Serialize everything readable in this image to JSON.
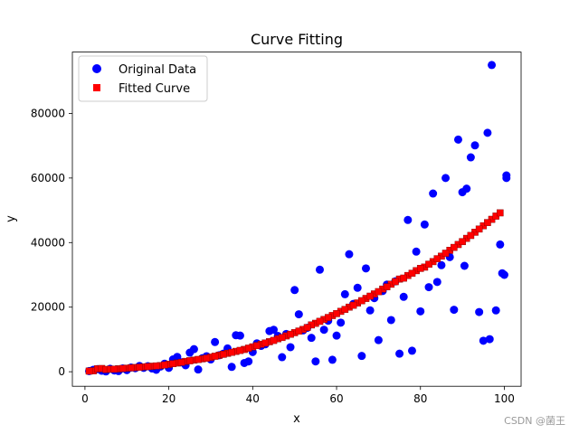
{
  "chart_data": {
    "type": "scatter",
    "title": "Curve Fitting",
    "xlabel": "x",
    "ylabel": "y",
    "xlim": [
      -3,
      104
    ],
    "ylim": [
      -4500,
      99000
    ],
    "x_ticks": [
      0,
      20,
      40,
      60,
      80,
      100
    ],
    "y_ticks": [
      0,
      20000,
      40000,
      60000,
      80000
    ],
    "x_tick_labels": [
      "0",
      "20",
      "40",
      "60",
      "80",
      "100"
    ],
    "y_tick_labels": [
      "0",
      "20000",
      "40000",
      "60000",
      "80000"
    ],
    "legend_position": "upper-left",
    "series": [
      {
        "name": "Original Data",
        "color": "#0000ff",
        "marker": "circle",
        "points": [
          [
            1,
            200
          ],
          [
            2,
            600
          ],
          [
            3,
            800
          ],
          [
            4,
            300
          ],
          [
            5,
            100
          ],
          [
            6,
            900
          ],
          [
            7,
            400
          ],
          [
            8,
            200
          ],
          [
            9,
            1000
          ],
          [
            10,
            500
          ],
          [
            11,
            1300
          ],
          [
            12,
            1100
          ],
          [
            13,
            1800
          ],
          [
            14,
            1200
          ],
          [
            15,
            1700
          ],
          [
            16,
            1000
          ],
          [
            17,
            600
          ],
          [
            18,
            1600
          ],
          [
            19,
            2500
          ],
          [
            20,
            1200
          ],
          [
            21,
            3800
          ],
          [
            22,
            4600
          ],
          [
            23,
            2900
          ],
          [
            24,
            2000
          ],
          [
            25,
            5900
          ],
          [
            26,
            7000
          ],
          [
            27,
            700
          ],
          [
            28,
            4200
          ],
          [
            29,
            4800
          ],
          [
            30,
            3800
          ],
          [
            31,
            9200
          ],
          [
            32,
            5100
          ],
          [
            33,
            5600
          ],
          [
            34,
            7200
          ],
          [
            35,
            1500
          ],
          [
            36,
            11300
          ],
          [
            37,
            11200
          ],
          [
            38,
            2700
          ],
          [
            39,
            3200
          ],
          [
            40,
            6100
          ],
          [
            41,
            8800
          ],
          [
            42,
            8000
          ],
          [
            43,
            8500
          ],
          [
            44,
            12600
          ],
          [
            45,
            13000
          ],
          [
            46,
            11100
          ],
          [
            47,
            4500
          ],
          [
            48,
            11700
          ],
          [
            49,
            7600
          ],
          [
            50,
            25300
          ],
          [
            51,
            17800
          ],
          [
            52,
            12800
          ],
          [
            53,
            13600
          ],
          [
            54,
            10500
          ],
          [
            55,
            3200
          ],
          [
            56,
            31600
          ],
          [
            57,
            13000
          ],
          [
            58,
            15800
          ],
          [
            59,
            3700
          ],
          [
            60,
            11200
          ],
          [
            61,
            15200
          ],
          [
            62,
            24000
          ],
          [
            63,
            36400
          ],
          [
            64,
            21000
          ],
          [
            65,
            26000
          ],
          [
            66,
            4900
          ],
          [
            67,
            32000
          ],
          [
            68,
            19000
          ],
          [
            69,
            22800
          ],
          [
            70,
            9800
          ],
          [
            71,
            25000
          ],
          [
            72,
            27000
          ],
          [
            73,
            16000
          ],
          [
            74,
            28000
          ],
          [
            75,
            5600
          ],
          [
            76,
            23200
          ],
          [
            77,
            47000
          ],
          [
            78,
            6500
          ],
          [
            79,
            37200
          ],
          [
            80,
            18700
          ],
          [
            81,
            45600
          ],
          [
            82,
            26200
          ],
          [
            83,
            55200
          ],
          [
            84,
            27800
          ],
          [
            85,
            33000
          ],
          [
            86,
            60000
          ],
          [
            87,
            35500
          ],
          [
            88,
            19200
          ],
          [
            89,
            71900
          ],
          [
            90,
            55600
          ],
          [
            91,
            56700
          ],
          [
            92,
            66400
          ],
          [
            93,
            70100
          ],
          [
            94,
            18500
          ],
          [
            95,
            9600
          ],
          [
            96,
            74000
          ],
          [
            97,
            95000
          ],
          [
            98,
            19000
          ],
          [
            99,
            39400
          ],
          [
            100,
            30000
          ],
          [
            96.5,
            10100
          ],
          [
            99.5,
            30500
          ],
          [
            100.5,
            60000
          ],
          [
            100.5,
            60800
          ],
          [
            90.5,
            32800
          ]
        ]
      },
      {
        "name": "Fitted Curve",
        "color": "#ff0000",
        "marker": "square",
        "points": [
          [
            2,
            300
          ],
          [
            3,
            900
          ],
          [
            4,
            1000
          ],
          [
            5,
            700
          ],
          [
            6,
            800
          ],
          [
            8,
            900
          ],
          [
            10,
            1100
          ],
          [
            12,
            1300
          ],
          [
            14,
            1500
          ],
          [
            16,
            1700
          ],
          [
            18,
            1900
          ],
          [
            20,
            2300
          ],
          [
            22,
            2700
          ],
          [
            24,
            3200
          ],
          [
            26,
            3600
          ],
          [
            28,
            4000
          ],
          [
            30,
            4500
          ],
          [
            32,
            5100
          ],
          [
            34,
            5700
          ],
          [
            36,
            6300
          ],
          [
            38,
            6900
          ],
          [
            40,
            7700
          ],
          [
            42,
            8500
          ],
          [
            44,
            9300
          ],
          [
            46,
            10200
          ],
          [
            48,
            11100
          ],
          [
            50,
            12100
          ],
          [
            52,
            13100
          ],
          [
            55,
            15000
          ],
          [
            57,
            16200
          ],
          [
            59,
            17400
          ],
          [
            61,
            18700
          ],
          [
            63,
            20000
          ],
          [
            65,
            21300
          ],
          [
            67,
            22700
          ],
          [
            69,
            24100
          ],
          [
            71,
            25600
          ],
          [
            73,
            27100
          ],
          [
            75,
            28700
          ],
          [
            77,
            29800
          ],
          [
            79,
            31300
          ],
          [
            81,
            32400
          ],
          [
            83,
            34100
          ],
          [
            85,
            35800
          ],
          [
            87,
            37600
          ],
          [
            89,
            39400
          ],
          [
            91,
            41300
          ],
          [
            93,
            43200
          ],
          [
            95,
            45200
          ],
          [
            97,
            47200
          ],
          [
            98,
            48200
          ],
          [
            99,
            49200
          ],
          [
            78,
            30500
          ],
          [
            80,
            32000
          ],
          [
            82,
            33300
          ],
          [
            84,
            35000
          ],
          [
            86,
            36700
          ],
          [
            88,
            38500
          ],
          [
            90,
            40300
          ],
          [
            92,
            42200
          ],
          [
            94,
            44200
          ],
          [
            96,
            46200
          ],
          [
            76,
            29000
          ],
          [
            74,
            27900
          ],
          [
            72,
            26300
          ],
          [
            70,
            24800
          ],
          [
            68,
            23400
          ],
          [
            66,
            22000
          ],
          [
            64,
            20600
          ],
          [
            62,
            19300
          ],
          [
            60,
            18000
          ],
          [
            58,
            16800
          ],
          [
            56,
            15600
          ],
          [
            54,
            14500
          ],
          [
            53,
            13700
          ],
          [
            51,
            12600
          ],
          [
            49,
            11600
          ],
          [
            47,
            10600
          ],
          [
            45,
            9700
          ],
          [
            43,
            8900
          ],
          [
            41,
            8100
          ],
          [
            39,
            7300
          ],
          [
            37,
            6600
          ],
          [
            35,
            6000
          ],
          [
            33,
            5400
          ],
          [
            31,
            4800
          ],
          [
            29,
            4200
          ],
          [
            27,
            3800
          ],
          [
            25,
            3400
          ],
          [
            23,
            2900
          ],
          [
            21,
            2500
          ],
          [
            19,
            2100
          ],
          [
            17,
            1800
          ],
          [
            15,
            1600
          ],
          [
            13,
            1400
          ],
          [
            11,
            1200
          ],
          [
            9,
            1000
          ],
          [
            7,
            800
          ],
          [
            1,
            200
          ]
        ]
      }
    ]
  },
  "watermark": "CSDN @菌王"
}
